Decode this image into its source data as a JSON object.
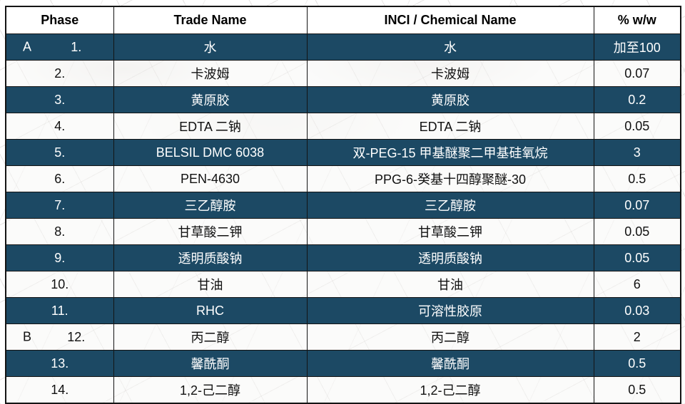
{
  "table": {
    "columns": [
      "Phase",
      "Trade Name",
      "INCI / Chemical Name",
      "% w/w"
    ],
    "rows": [
      {
        "phase_letter": "A",
        "num": "1.",
        "trade": "水",
        "inci": "水",
        "pct": "加至100"
      },
      {
        "phase_letter": "",
        "num": "2.",
        "trade": "卡波姆",
        "inci": "卡波姆",
        "pct": "0.07"
      },
      {
        "phase_letter": "",
        "num": "3.",
        "trade": "黄原胶",
        "inci": "黄原胶",
        "pct": "0.2"
      },
      {
        "phase_letter": "",
        "num": "4.",
        "trade": "EDTA 二钠",
        "inci": "EDTA 二钠",
        "pct": "0.05"
      },
      {
        "phase_letter": "",
        "num": "5.",
        "trade": "BELSIL DMC 6038",
        "inci": "双-PEG-15 甲基醚聚二甲基硅氧烷",
        "pct": "3"
      },
      {
        "phase_letter": "",
        "num": "6.",
        "trade": "PEN-4630",
        "inci": "PPG-6-癸基十四醇聚醚-30",
        "pct": "0.5"
      },
      {
        "phase_letter": "",
        "num": "7.",
        "trade": "三乙醇胺",
        "inci": "三乙醇胺",
        "pct": "0.07"
      },
      {
        "phase_letter": "",
        "num": "8.",
        "trade": "甘草酸二钾",
        "inci": "甘草酸二钾",
        "pct": "0.05"
      },
      {
        "phase_letter": "",
        "num": "9.",
        "trade": "透明质酸钠",
        "inci": "透明质酸钠",
        "pct": "0.05"
      },
      {
        "phase_letter": "",
        "num": "10.",
        "trade": "甘油",
        "inci": "甘油",
        "pct": "6"
      },
      {
        "phase_letter": "",
        "num": "11.",
        "trade": "RHC",
        "inci": "可溶性胶原",
        "pct": "0.03"
      },
      {
        "phase_letter": "B",
        "num": "12.",
        "trade": "丙二醇",
        "inci": "丙二醇",
        "pct": "2"
      },
      {
        "phase_letter": "",
        "num": "13.",
        "trade": "馨酰酮",
        "inci": "馨酰酮",
        "pct": "0.5"
      },
      {
        "phase_letter": "",
        "num": "14.",
        "trade": "1,2-己二醇",
        "inci": "1,2-己二醇",
        "pct": "0.5"
      }
    ]
  },
  "colors": {
    "row_dark": "#1c4964",
    "row_light": "#f6f5f4",
    "border": "#141414",
    "text_on_dark": "#ffffff",
    "text_on_light": "#111111"
  }
}
